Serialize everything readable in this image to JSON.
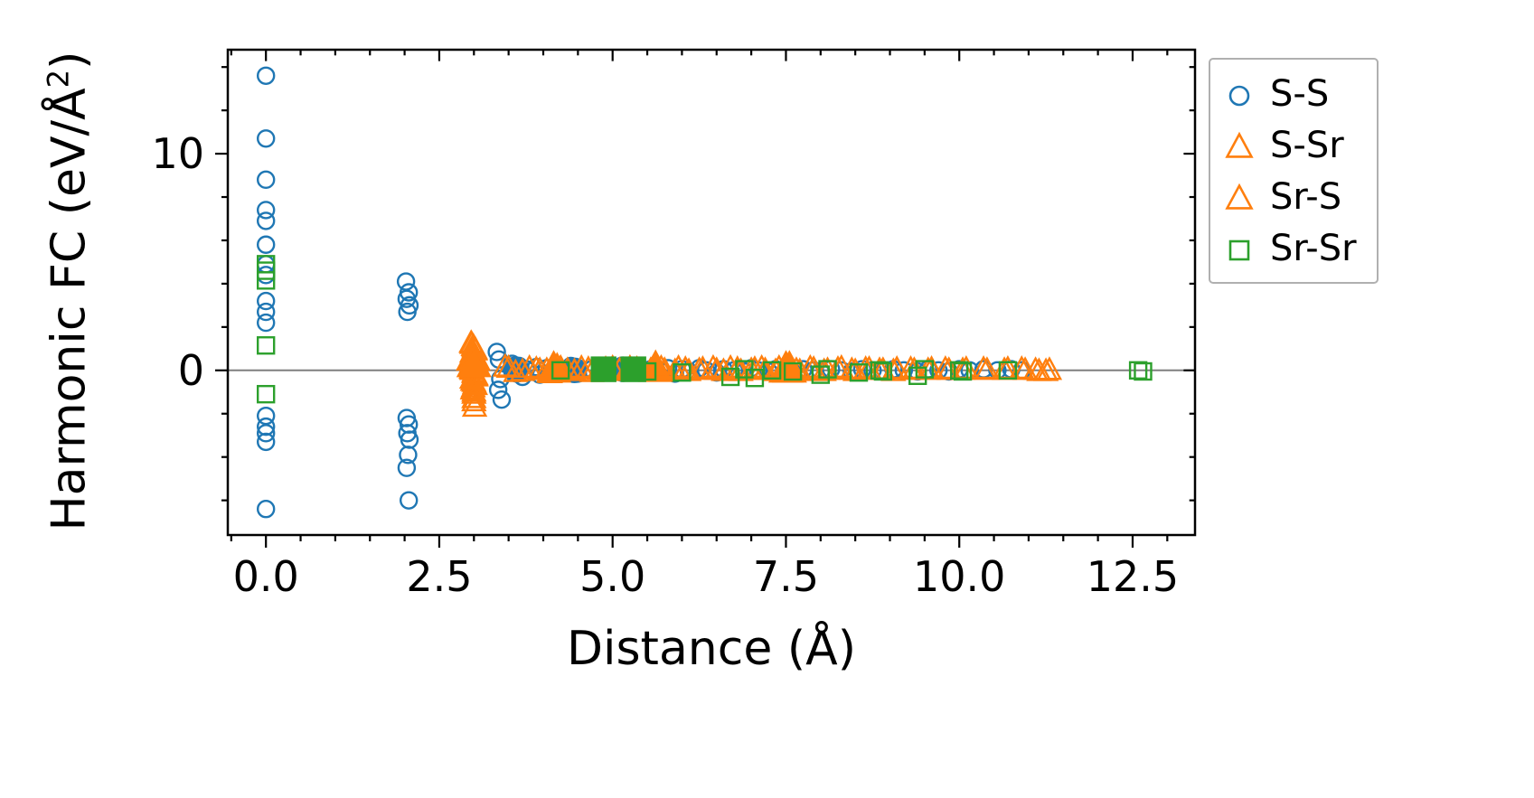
{
  "figure": {
    "xlabel": "Distance (Å)",
    "ylabel": "Harmonic FC (eV/Å²)"
  },
  "chart_data": {
    "type": "scatter",
    "title": "",
    "xlabel": "Distance (Å)",
    "ylabel": "Harmonic FC (eV/Å²)",
    "ylabel_parts": {
      "pre": "Harmonic FC (eV/Å",
      "sup": "2",
      "post": ")"
    },
    "xlim": [
      -0.55,
      13.4
    ],
    "ylim": [
      -7.6,
      14.8
    ],
    "xticks": [
      0.0,
      2.5,
      5.0,
      7.5,
      10.0,
      12.5
    ],
    "xtick_labels": [
      "0.0",
      "2.5",
      "5.0",
      "7.5",
      "10.0",
      "12.5"
    ],
    "yticks": [
      0,
      10
    ],
    "ytick_labels": [
      "0",
      "10"
    ],
    "minor_x_step": 0.5,
    "minor_y_step": 2,
    "grid": false,
    "zero_line": {
      "y": 0,
      "color": "#7f7f7f"
    },
    "legend_position": "outside-top-right",
    "series": [
      {
        "name": "S-S",
        "marker": "circle",
        "color": "#1f77b4",
        "filled": false,
        "points": [
          [
            0,
            13.6
          ],
          [
            0,
            10.7
          ],
          [
            0,
            8.8
          ],
          [
            0,
            7.4
          ],
          [
            0,
            6.9
          ],
          [
            0,
            5.8
          ],
          [
            0,
            4.9
          ],
          [
            0,
            4.4
          ],
          [
            0,
            3.2
          ],
          [
            0,
            2.7
          ],
          [
            0,
            2.2
          ],
          [
            0,
            -2.1
          ],
          [
            0,
            -2.6
          ],
          [
            0,
            -2.9
          ],
          [
            0,
            -3.3
          ],
          [
            0,
            -6.4
          ],
          [
            2.02,
            4.1
          ],
          [
            2.06,
            3.6
          ],
          [
            2.03,
            3.3
          ],
          [
            2.07,
            3.0
          ],
          [
            2.04,
            2.7
          ],
          [
            2.03,
            -2.2
          ],
          [
            2.06,
            -2.5
          ],
          [
            2.04,
            -2.9
          ],
          [
            2.07,
            -3.2
          ],
          [
            2.05,
            -3.9
          ],
          [
            2.03,
            -4.5
          ],
          [
            2.06,
            -6.0
          ],
          [
            3.33,
            0.85
          ],
          [
            3.36,
            0.5
          ],
          [
            3.38,
            -0.4
          ],
          [
            3.35,
            -0.9
          ],
          [
            3.4,
            -1.35
          ],
          [
            3.55,
            0.3
          ],
          [
            3.6,
            0.1
          ],
          [
            3.62,
            -0.15
          ],
          [
            3.58,
            -0.05
          ],
          [
            3.65,
            0.2
          ],
          [
            3.7,
            -0.3
          ],
          [
            3.75,
            0.05
          ],
          [
            3.9,
            0.15
          ],
          [
            3.95,
            -0.2
          ],
          [
            4.05,
            0.1
          ],
          [
            4.1,
            -0.1
          ],
          [
            4.4,
            0.2
          ],
          [
            4.45,
            0.0
          ],
          [
            4.5,
            -0.15
          ],
          [
            4.42,
            0.1
          ],
          [
            4.7,
            0.05
          ],
          [
            4.85,
            -0.1
          ],
          [
            5.0,
            0.1
          ],
          [
            5.1,
            -0.05
          ],
          [
            5.15,
            0.15
          ],
          [
            5.3,
            0.0
          ],
          [
            5.45,
            -0.1
          ],
          [
            5.55,
            0.05
          ],
          [
            5.7,
            -0.05
          ],
          [
            5.8,
            0.1
          ],
          [
            5.9,
            -0.15
          ],
          [
            6.0,
            0.05
          ],
          [
            6.1,
            -0.05
          ],
          [
            6.25,
            0.1
          ],
          [
            6.35,
            0.0
          ],
          [
            6.5,
            -0.1
          ],
          [
            6.6,
            0.05
          ],
          [
            6.75,
            0.0
          ],
          [
            6.9,
            -0.05
          ],
          [
            7.0,
            0.1
          ],
          [
            7.1,
            0.0
          ],
          [
            7.25,
            -0.05
          ],
          [
            7.35,
            0.05
          ],
          [
            7.5,
            0.0
          ],
          [
            7.6,
            -0.1
          ],
          [
            7.75,
            0.05
          ],
          [
            7.9,
            0.0
          ],
          [
            8.0,
            -0.05
          ],
          [
            8.15,
            0.05
          ],
          [
            8.3,
            0.0
          ],
          [
            8.45,
            -0.05
          ],
          [
            8.6,
            0.05
          ],
          [
            8.75,
            0.0
          ],
          [
            8.9,
            -0.05
          ],
          [
            9.05,
            0.05
          ],
          [
            9.2,
            0.0
          ],
          [
            9.4,
            -0.05
          ],
          [
            9.55,
            0.05
          ],
          [
            9.7,
            0.0
          ],
          [
            9.85,
            -0.05
          ],
          [
            10.0,
            0.05
          ],
          [
            10.15,
            0.0
          ],
          [
            10.35,
            0.05
          ],
          [
            10.55,
            0.0
          ],
          [
            10.75,
            0.05
          ],
          [
            10.9,
            0.0
          ]
        ],
        "emphasis_points": [
          [
            3.6,
            0.05
          ],
          [
            4.45,
            0.0
          ],
          [
            5.15,
            0.05
          ]
        ]
      },
      {
        "name": "S-Sr",
        "marker": "triangle",
        "color": "#ff7f0e",
        "filled": false,
        "points": [
          [
            2.96,
            1.25
          ],
          [
            2.99,
            1.1
          ],
          [
            3.02,
            0.95
          ],
          [
            2.97,
            0.8
          ],
          [
            3.0,
            0.65
          ],
          [
            3.03,
            0.5
          ],
          [
            2.98,
            0.35
          ],
          [
            3.01,
            0.2
          ],
          [
            2.96,
            0.05
          ],
          [
            3.0,
            -0.1
          ],
          [
            3.03,
            -0.25
          ],
          [
            2.97,
            -0.4
          ],
          [
            3.0,
            -0.55
          ],
          [
            3.02,
            -0.7
          ],
          [
            2.98,
            -0.9
          ],
          [
            3.0,
            -1.1
          ],
          [
            3.0,
            -1.45
          ],
          [
            3.01,
            -1.7
          ],
          [
            3.45,
            0.15
          ],
          [
            3.6,
            -0.1
          ],
          [
            3.8,
            0.1
          ],
          [
            3.95,
            0.0
          ],
          [
            4.1,
            -0.15
          ],
          [
            4.2,
            0.2
          ],
          [
            4.35,
            0.0
          ],
          [
            4.55,
            0.1
          ],
          [
            4.7,
            -0.1
          ],
          [
            4.9,
            0.05
          ],
          [
            5.1,
            0.0
          ],
          [
            5.25,
            0.1
          ],
          [
            5.4,
            -0.05
          ],
          [
            5.6,
            0.05
          ],
          [
            5.75,
            0.0
          ],
          [
            5.95,
            0.1
          ],
          [
            6.1,
            -0.05
          ],
          [
            6.3,
            0.05
          ],
          [
            6.5,
            0.0
          ],
          [
            6.7,
            0.1
          ],
          [
            6.85,
            -0.05
          ],
          [
            7.05,
            0.05
          ],
          [
            7.2,
            0.0
          ],
          [
            7.4,
            0.1
          ],
          [
            7.55,
            0.0
          ],
          [
            7.7,
            -0.05
          ],
          [
            7.9,
            0.05
          ],
          [
            8.1,
            0.0
          ],
          [
            8.3,
            0.1
          ],
          [
            8.5,
            -0.05
          ],
          [
            8.7,
            0.05
          ],
          [
            8.9,
            0.0
          ],
          [
            9.1,
            0.05
          ],
          [
            9.35,
            0.0
          ],
          [
            9.6,
            0.05
          ],
          [
            9.85,
            0.0
          ],
          [
            10.1,
            0.05
          ],
          [
            10.4,
            0.0
          ],
          [
            10.7,
            0.05
          ],
          [
            10.95,
            0.0
          ],
          [
            11.15,
            -0.05
          ],
          [
            11.3,
            0.0
          ]
        ],
        "emphasis_points": [
          [
            2.99,
            0.6
          ],
          [
            4.15,
            0.05
          ],
          [
            5.62,
            0.08
          ],
          [
            7.5,
            0.05
          ]
        ]
      },
      {
        "name": "Sr-S",
        "marker": "triangle",
        "color": "#ff7f0e",
        "filled": false,
        "points": [
          [
            2.97,
            1.2
          ],
          [
            3.0,
            1.05
          ],
          [
            3.02,
            0.9
          ],
          [
            2.98,
            0.75
          ],
          [
            3.01,
            0.6
          ],
          [
            2.96,
            0.45
          ],
          [
            2.99,
            0.3
          ],
          [
            3.02,
            0.15
          ],
          [
            2.97,
            0.0
          ],
          [
            3.0,
            -0.15
          ],
          [
            3.03,
            -0.3
          ],
          [
            2.98,
            -0.5
          ],
          [
            3.01,
            -0.65
          ],
          [
            2.99,
            -0.8
          ],
          [
            3.0,
            -1.0
          ],
          [
            3.0,
            -1.3
          ],
          [
            3.5,
            0.1
          ],
          [
            3.7,
            -0.05
          ],
          [
            3.9,
            0.05
          ],
          [
            4.05,
            0.0
          ],
          [
            4.25,
            0.1
          ],
          [
            4.45,
            -0.05
          ],
          [
            4.65,
            0.05
          ],
          [
            4.8,
            0.0
          ],
          [
            5.0,
            0.1
          ],
          [
            5.2,
            -0.05
          ],
          [
            5.35,
            0.05
          ],
          [
            5.55,
            0.0
          ],
          [
            5.7,
            0.1
          ],
          [
            5.9,
            -0.05
          ],
          [
            6.05,
            0.05
          ],
          [
            6.25,
            0.0
          ],
          [
            6.45,
            0.1
          ],
          [
            6.6,
            -0.05
          ],
          [
            6.8,
            0.05
          ],
          [
            7.0,
            0.0
          ],
          [
            7.15,
            0.1
          ],
          [
            7.35,
            -0.05
          ],
          [
            7.5,
            0.05
          ],
          [
            7.65,
            0.0
          ],
          [
            7.85,
            0.1
          ],
          [
            8.05,
            -0.05
          ],
          [
            8.25,
            0.05
          ],
          [
            8.45,
            0.0
          ],
          [
            8.65,
            0.05
          ],
          [
            8.85,
            0.0
          ],
          [
            9.05,
            -0.05
          ],
          [
            9.3,
            0.05
          ],
          [
            9.55,
            0.0
          ],
          [
            9.8,
            0.05
          ],
          [
            10.05,
            0.0
          ],
          [
            10.35,
            0.05
          ],
          [
            10.65,
            0.0
          ],
          [
            10.9,
            0.05
          ],
          [
            11.1,
            0.0
          ],
          [
            11.25,
            -0.05
          ]
        ],
        "emphasis_points": [
          [
            3.0,
            0.3
          ],
          [
            7.55,
            0.05
          ]
        ]
      },
      {
        "name": "Sr-Sr",
        "marker": "square",
        "color": "#2ca02c",
        "filled": false,
        "points": [
          [
            0,
            4.9
          ],
          [
            0,
            4.6
          ],
          [
            0,
            4.15
          ],
          [
            0,
            1.15
          ],
          [
            0,
            -1.1
          ],
          [
            4.25,
            0.0
          ],
          [
            5.5,
            -0.05
          ],
          [
            6.0,
            -0.1
          ],
          [
            6.7,
            -0.3
          ],
          [
            6.9,
            0.05
          ],
          [
            7.05,
            -0.35
          ],
          [
            7.3,
            0.0
          ],
          [
            7.6,
            -0.05
          ],
          [
            8.0,
            -0.2
          ],
          [
            8.1,
            0.05
          ],
          [
            8.55,
            -0.1
          ],
          [
            8.85,
            0.0
          ],
          [
            8.9,
            -0.05
          ],
          [
            9.4,
            -0.25
          ],
          [
            9.5,
            0.05
          ],
          [
            10.0,
            0.0
          ],
          [
            10.05,
            -0.05
          ],
          [
            10.7,
            0.0
          ],
          [
            12.58,
            0.0
          ],
          [
            12.65,
            -0.05
          ]
        ],
        "emphasis_points": [
          [
            4.87,
            0.05
          ],
          [
            5.3,
            0.05
          ]
        ]
      }
    ]
  }
}
